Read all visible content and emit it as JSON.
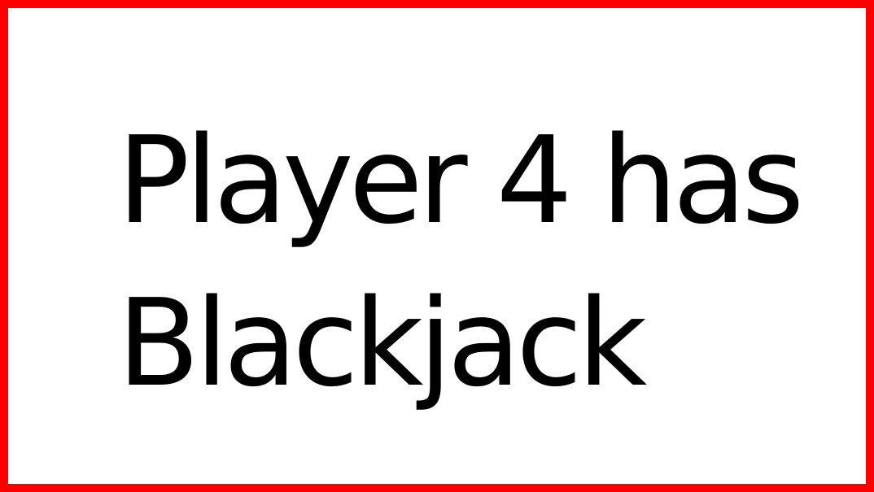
{
  "notification": {
    "line1": "Player 4 has",
    "line2": "Blackjack"
  },
  "colors": {
    "border": "#ff0000",
    "background": "#ffffff",
    "text": "#000000"
  }
}
